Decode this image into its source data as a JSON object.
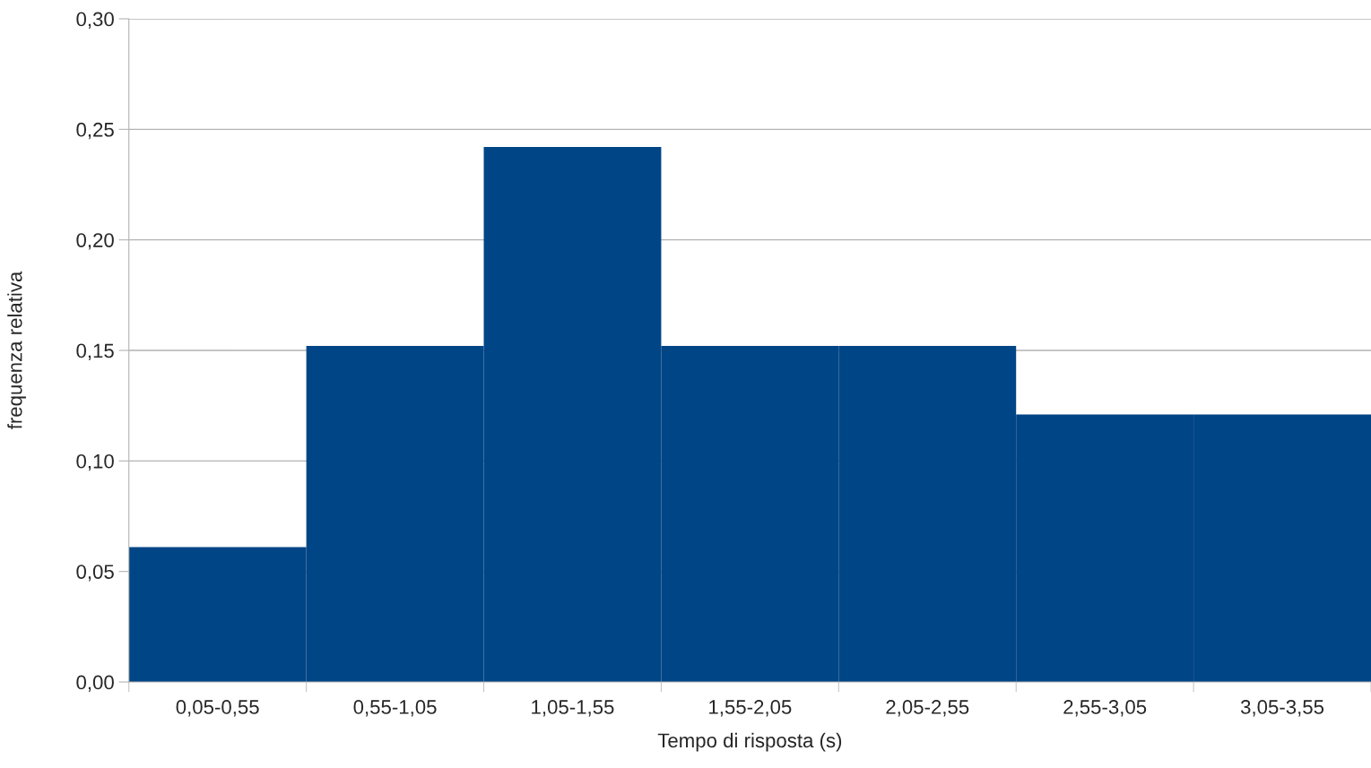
{
  "chart_data": {
    "type": "bar",
    "xlabel": "Tempo di risposta (s)",
    "ylabel": "frequenza relativa",
    "categories": [
      "0,05-0,55",
      "0,55-1,05",
      "1,05-1,55",
      "1,55-2,05",
      "2,05-2,55",
      "2,55-3,05",
      "3,05-3,55"
    ],
    "values": [
      0.061,
      0.152,
      0.242,
      0.152,
      0.152,
      0.121,
      0.121
    ],
    "color": "#004586",
    "ylim": [
      0,
      0.3
    ],
    "yticks": [
      {
        "value": 0,
        "label": "0,00"
      },
      {
        "value": 0.05,
        "label": "0,05"
      },
      {
        "value": 0.1,
        "label": "0,10"
      },
      {
        "value": 0.15,
        "label": "0,15"
      },
      {
        "value": 0.2,
        "label": "0,20"
      },
      {
        "value": 0.25,
        "label": "0,25"
      },
      {
        "value": 0.3,
        "label": "0,30"
      }
    ],
    "grid": "y",
    "legend": false
  }
}
